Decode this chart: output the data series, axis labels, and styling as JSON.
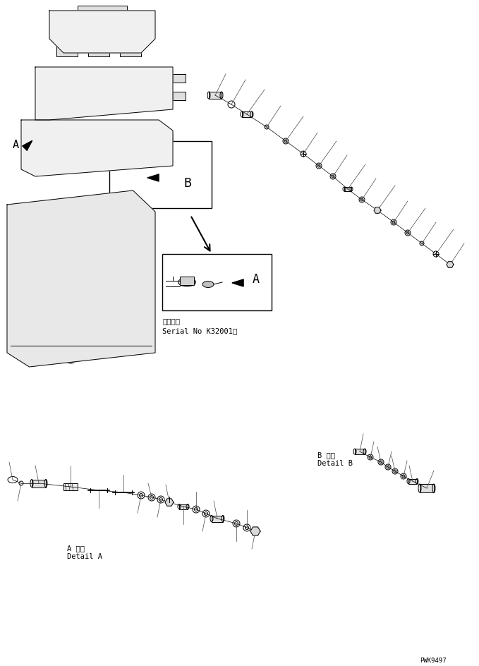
{
  "bg_color": "#ffffff",
  "line_color": "#000000",
  "fig_width": 6.79,
  "fig_height": 9.44,
  "dpi": 100,
  "watermark": "PWK9497",
  "serial_text_line1": "適用号機",
  "serial_text_line2": "Serial No K32001～",
  "label_A_detail_line1": "A 詳細",
  "label_A_detail_line2": "Detail A",
  "label_B_detail_line1": "B 詳細",
  "label_B_detail_line2": "Detail B"
}
